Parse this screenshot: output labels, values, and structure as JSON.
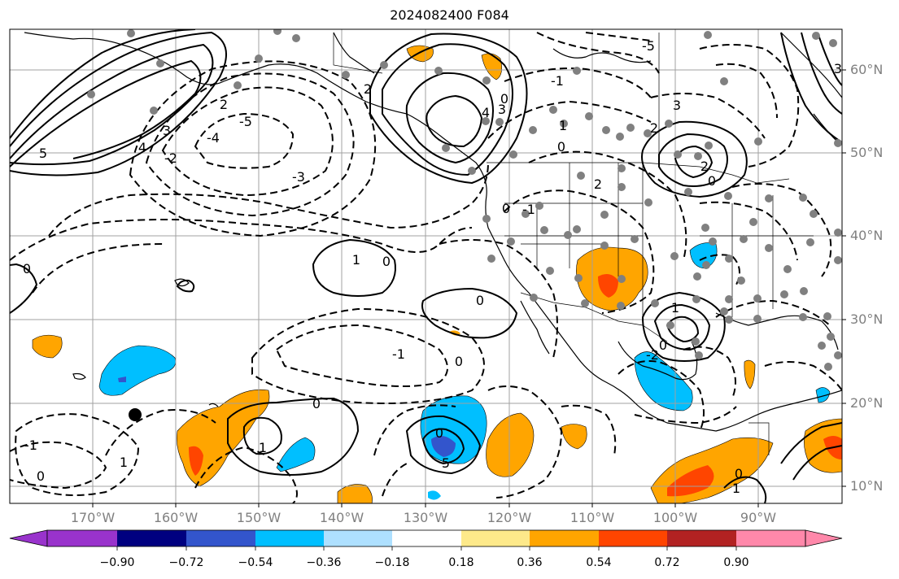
{
  "title": "2024082400 F084",
  "lat_labels": [
    "60°N",
    "50°N",
    "40°N",
    "30°N",
    "20°N",
    "10°N"
  ],
  "lon_labels": [
    "170°W",
    "160°W",
    "150°W",
    "140°W",
    "130°W",
    "120°W",
    "110°W",
    "100°W",
    "90°W"
  ],
  "colorbar": {
    "tick_labels": [
      "−0.90",
      "−0.72",
      "−0.54",
      "−0.36",
      "−0.18",
      "0.18",
      "0.36",
      "0.54",
      "0.72",
      "0.90"
    ],
    "colors": [
      "#9933cc",
      "#000080",
      "#3355cc",
      "#00bfff",
      "#aee0ff",
      "#ffffff",
      "#fde98a",
      "#ffa500",
      "#ff4500",
      "#b22222",
      "#ff88aa"
    ]
  },
  "contour_labels": [
    {
      "text": "5",
      "id": "c1"
    },
    {
      "text": "4",
      "id": "c2"
    },
    {
      "text": "3",
      "id": "c3"
    },
    {
      "text": "2",
      "id": "c4"
    },
    {
      "text": "-5",
      "id": "c5"
    },
    {
      "text": "-4",
      "id": "c6"
    },
    {
      "text": "-3",
      "id": "c7"
    },
    {
      "text": "-2",
      "id": "c8"
    },
    {
      "text": "0",
      "id": "c9"
    },
    {
      "text": "1",
      "id": "c10"
    },
    {
      "text": "0",
      "id": "c11"
    },
    {
      "text": "0",
      "id": "c12"
    },
    {
      "text": "-1",
      "id": "c13"
    },
    {
      "text": "0",
      "id": "c14"
    },
    {
      "text": "1",
      "id": "c15"
    },
    {
      "text": "0",
      "id": "c16"
    },
    {
      "text": "-1",
      "id": "c17"
    },
    {
      "text": "0",
      "id": "c18"
    },
    {
      "text": "1",
      "id": "c19"
    },
    {
      "text": "0",
      "id": "c20"
    },
    {
      "text": "5",
      "id": "c21"
    },
    {
      "text": "4",
      "id": "c22"
    },
    {
      "text": "3",
      "id": "c23"
    },
    {
      "text": "0",
      "id": "c24"
    },
    {
      "text": "2",
      "id": "c25"
    },
    {
      "text": "3",
      "id": "c26"
    },
    {
      "text": "2",
      "id": "c27"
    },
    {
      "text": "0",
      "id": "c28"
    },
    {
      "text": "2",
      "id": "c29"
    },
    {
      "text": "1",
      "id": "c30"
    },
    {
      "text": "0",
      "id": "c31"
    },
    {
      "text": "-2",
      "id": "c32"
    },
    {
      "text": "-1",
      "id": "c33"
    },
    {
      "text": "0",
      "id": "c34"
    },
    {
      "text": "0",
      "id": "c35"
    },
    {
      "text": "1",
      "id": "c36"
    },
    {
      "text": "-1",
      "id": "c37"
    },
    {
      "text": "2",
      "id": "c38"
    },
    {
      "text": "-5",
      "id": "c39"
    },
    {
      "text": "3",
      "id": "c40"
    },
    {
      "text": "1",
      "id": "c41"
    },
    {
      "text": "0",
      "id": "c42"
    }
  ]
}
